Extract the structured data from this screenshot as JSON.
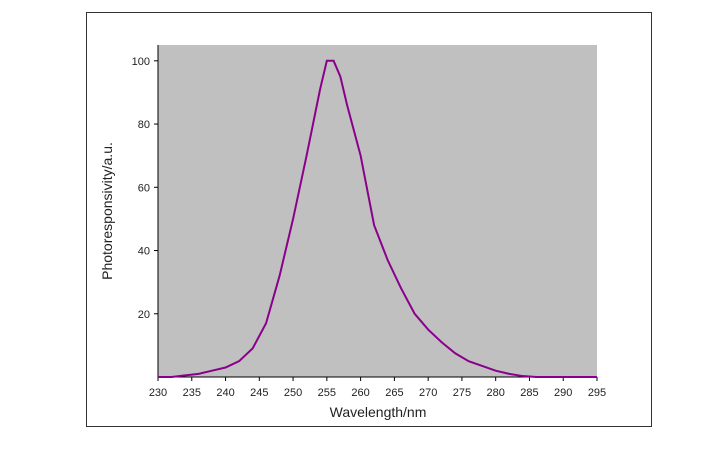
{
  "chart_data": {
    "type": "line",
    "x_label": "Wavelength/nm",
    "y_label": "Photoresponsivity/a.u.",
    "series": [
      {
        "color": "#8b008b",
        "x": [
          230,
          232,
          234,
          236,
          238,
          240,
          242,
          244,
          246,
          248,
          250,
          252,
          254,
          255,
          256,
          257,
          258,
          260,
          262,
          264,
          266,
          268,
          270,
          272,
          274,
          276,
          278,
          280,
          282,
          284,
          286,
          290,
          295
        ],
        "values": [
          0,
          0,
          0.5,
          1,
          2,
          3,
          5,
          9,
          17,
          32,
          50,
          70,
          91,
          100,
          100,
          95,
          86,
          70,
          48,
          37,
          28,
          20,
          15,
          11,
          7.5,
          5,
          3.5,
          2,
          1,
          0.3,
          0,
          0,
          0
        ]
      }
    ],
    "xlim": [
      230,
      295
    ],
    "xticks": [
      230,
      235,
      240,
      245,
      250,
      255,
      260,
      265,
      270,
      275,
      280,
      285,
      290,
      295
    ],
    "ylim": [
      0,
      105
    ],
    "yticks": [
      20,
      40,
      60,
      80,
      100
    ],
    "background": "#c0c0c0"
  }
}
